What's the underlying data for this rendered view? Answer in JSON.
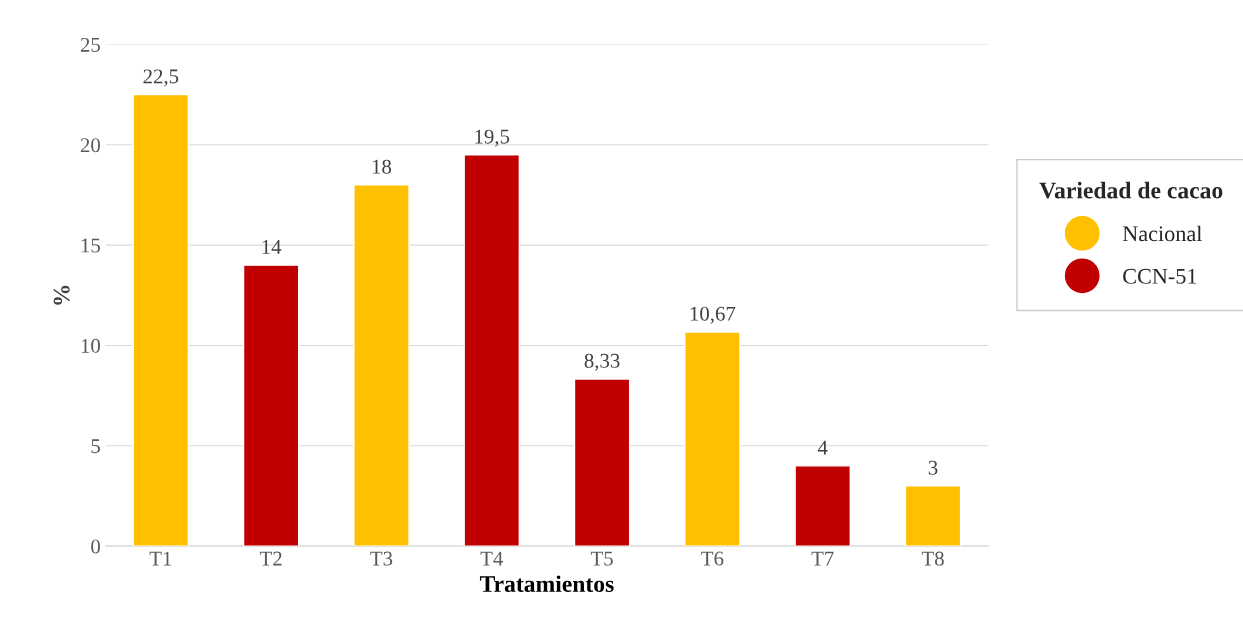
{
  "chart_data": {
    "type": "bar",
    "xlabel": "Tratamientos",
    "ylabel": "%",
    "legend_title": "Variedad de cacao",
    "categories": [
      "T1",
      "T2",
      "T3",
      "T4",
      "T5",
      "T6",
      "T7",
      "T8"
    ],
    "series": [
      {
        "name": "Nacional",
        "color": "#ffc000",
        "values": [
          22.5,
          null,
          18,
          null,
          null,
          10.67,
          null,
          3
        ],
        "value_labels": [
          "22,5",
          null,
          "18",
          null,
          null,
          "10,67",
          null,
          "3"
        ]
      },
      {
        "name": "CCN-51",
        "color": "#c00000",
        "values": [
          null,
          14,
          null,
          19.5,
          8.33,
          null,
          4,
          null
        ],
        "value_labels": [
          null,
          "14",
          null,
          "19,5",
          "8,33",
          null,
          "4",
          null
        ]
      }
    ],
    "ylim": [
      0,
      25
    ],
    "yticks": [
      0,
      5,
      10,
      15,
      20,
      25
    ],
    "grid": "y",
    "legend": "right",
    "marker": "circle"
  }
}
